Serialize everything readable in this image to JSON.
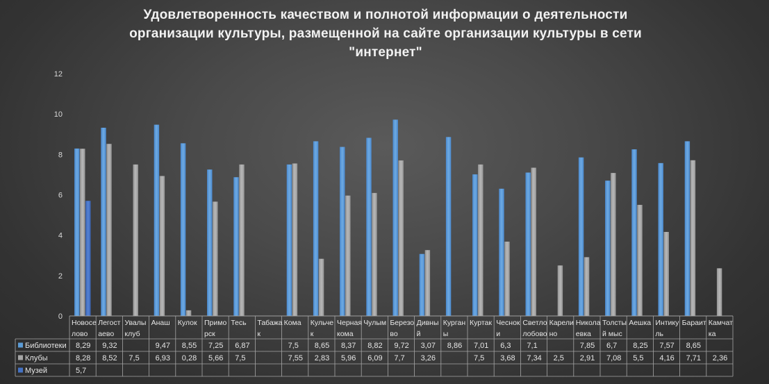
{
  "chart_data": {
    "type": "bar",
    "title": [
      "Удовлетворенность качеством и полнотой информации о деятельности",
      "организации культуры, размещенной на сайте организации культуры в сети",
      "\"интернет\""
    ],
    "categories": [
      [
        "Новосе",
        "лово"
      ],
      [
        "Легост",
        "аево"
      ],
      [
        "Увалы",
        "клуб"
      ],
      [
        "Анаш"
      ],
      [
        "Кулок"
      ],
      [
        "Примо",
        "рск"
      ],
      [
        "Тесь"
      ],
      [
        "Табажа",
        "к"
      ],
      [
        "Кома"
      ],
      [
        "Кульче",
        "к"
      ],
      [
        "Черная",
        "кома"
      ],
      [
        "Чулым"
      ],
      [
        "Березо",
        "во"
      ],
      [
        "Дивны",
        "й"
      ],
      [
        "Курган",
        "ы"
      ],
      [
        "Куртак"
      ],
      [
        "Чеснок",
        "и"
      ],
      [
        "Светло",
        "лобово"
      ],
      [
        "Карели",
        "но"
      ],
      [
        "Никола",
        "евка"
      ],
      [
        "Толсты",
        "й мыс"
      ],
      [
        "Аешка"
      ],
      [
        "Интику",
        "ль"
      ],
      [
        "Бараит"
      ],
      [
        "Камчат",
        "ка"
      ]
    ],
    "series": [
      {
        "name": "Библиотеки",
        "color": "#5b9bd5",
        "values": [
          "8,29",
          "9,32",
          null,
          "9,47",
          "8,55",
          "7,25",
          "6,87",
          null,
          "7,5",
          "8,65",
          "8,37",
          "8,82",
          "9,72",
          "3,07",
          "8,86",
          "7,01",
          "6,3",
          "7,1",
          null,
          "7,85",
          "6,7",
          "8,25",
          "7,57",
          "8,65",
          null
        ]
      },
      {
        "name": "Клубы",
        "color": "#a5a5a5",
        "values": [
          "8,28",
          "8,52",
          "7,5",
          "6,93",
          "0,28",
          "5,66",
          "7,5",
          null,
          "7,55",
          "2,83",
          "5,96",
          "6,09",
          "7,7",
          "3,26",
          null,
          "7,5",
          "3,68",
          "7,34",
          "2,5",
          "2,91",
          "7,08",
          "5,5",
          "4,16",
          "7,71",
          "2,36"
        ]
      },
      {
        "name": "Музей",
        "color": "#4472c4",
        "values": [
          "5,7",
          null,
          null,
          null,
          null,
          null,
          null,
          null,
          null,
          null,
          null,
          null,
          null,
          null,
          null,
          null,
          null,
          null,
          null,
          null,
          null,
          null,
          null,
          null,
          null
        ]
      }
    ],
    "ylim": [
      0,
      12
    ],
    "yticks": [
      "0",
      "2",
      "4",
      "6",
      "8",
      "10",
      "12"
    ],
    "grid": false,
    "legend": "data-table-left"
  }
}
